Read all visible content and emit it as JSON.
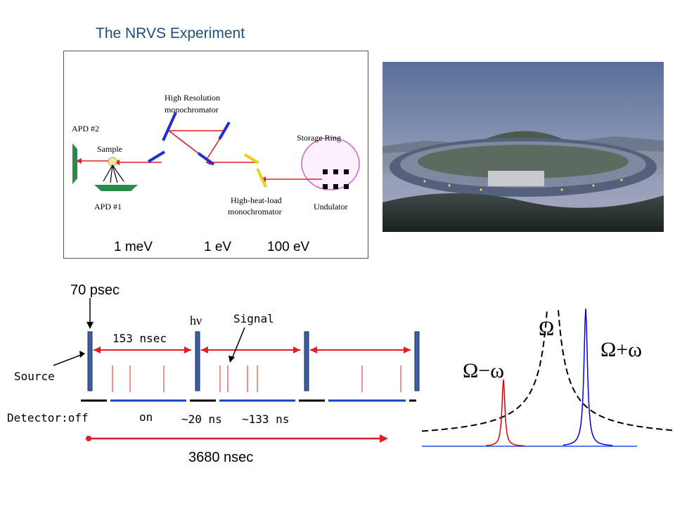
{
  "slide": {
    "title": "The NRVS Experiment"
  },
  "setup": {
    "labels": {
      "apd2": "APD #2",
      "sample": "Sample",
      "apd1": "APD #1",
      "hrm": [
        "High Resolution",
        "monochromator"
      ],
      "hhl": [
        "High-heat-load",
        "monochromator"
      ],
      "storage_ring": "Storage Ring",
      "undulator": "Undulator"
    },
    "energies": [
      "1 meV",
      "1 eV",
      "100 eV"
    ]
  },
  "photo": {
    "subject": "synchrotron storage ring facility at dusk"
  },
  "timing": {
    "pulse_width": "70 psec",
    "spacing": "153 nsec",
    "hv": "hν",
    "signal": "Signal",
    "source": "Source",
    "detector": "Detector:off",
    "on": "on",
    "gate1": "~20 ns",
    "gate2": "~133 ns",
    "period": "3680 nsec",
    "colors": {
      "pulse": "#3d5fa0",
      "arrow": "#e02020",
      "gate": "#1a3fc0",
      "signal": "#e02020"
    }
  },
  "spectrum": {
    "labels": {
      "omega": "Ω",
      "omega_minus": "Ω−ω",
      "omega_plus": "Ω+ω"
    },
    "colors": {
      "envelope": "#000000",
      "minus": "#e00000",
      "plus": "#0000e0",
      "baseline": "#2050e0"
    }
  }
}
